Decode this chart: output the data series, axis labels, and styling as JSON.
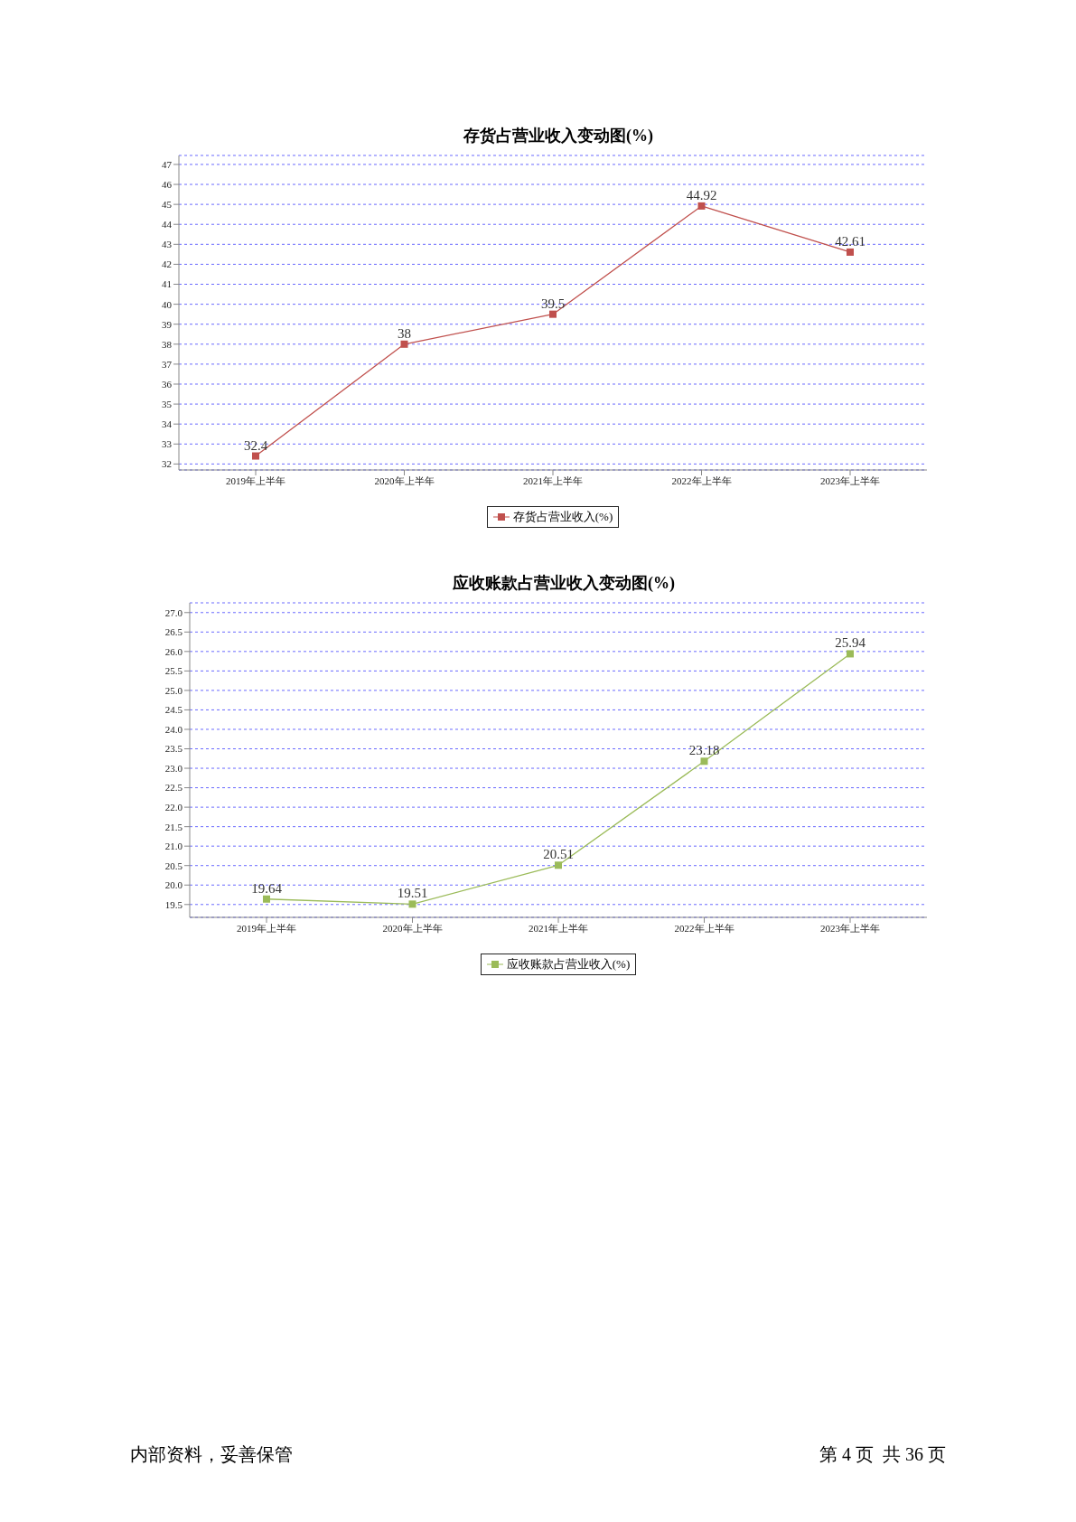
{
  "chart_data": [
    {
      "type": "line",
      "title": "存货占营业收入变动图(%)",
      "categories": [
        "2019年上半年",
        "2020年上半年",
        "2021年上半年",
        "2022年上半年",
        "2023年上半年"
      ],
      "series": [
        {
          "name": "存货占营业收入(%)",
          "color": "#c0504d",
          "values": [
            32.4,
            38,
            39.5,
            44.92,
            42.61
          ]
        }
      ],
      "ylim": [
        31.7,
        47.45
      ],
      "yticks": [
        32,
        33,
        34,
        35,
        36,
        37,
        38,
        39,
        40,
        41,
        42,
        43,
        44,
        45,
        46,
        47
      ],
      "grid": "y",
      "legend": "bottom",
      "marker": "square",
      "line_style": "solid",
      "data_labels": true
    },
    {
      "type": "line",
      "title": "应收账款占营业收入变动图(%)",
      "categories": [
        "2019年上半年",
        "2020年上半年",
        "2021年上半年",
        "2022年上半年",
        "2023年上半年"
      ],
      "series": [
        {
          "name": "应收账款占营业收入(%)",
          "color": "#9bbb59",
          "values": [
            19.64,
            19.51,
            20.51,
            23.18,
            25.94
          ]
        }
      ],
      "ylim": [
        19.17,
        27.25
      ],
      "yticks": [
        {
          "value": 19.5,
          "label": "19.5"
        },
        {
          "value": 20,
          "label": "20.0"
        },
        {
          "value": 20.5,
          "label": "20.5"
        },
        {
          "value": 21,
          "label": "21.0"
        },
        {
          "value": 21.5,
          "label": "21.5"
        },
        {
          "value": 22,
          "label": "22.0"
        },
        {
          "value": 22.5,
          "label": "22.5"
        },
        {
          "value": 23,
          "label": "23.0"
        },
        {
          "value": 23.5,
          "label": "23.5"
        },
        {
          "value": 24,
          "label": "24.0"
        },
        {
          "value": 24.5,
          "label": "24.5"
        },
        {
          "value": 25,
          "label": "25.0"
        },
        {
          "value": 25.5,
          "label": "25.5"
        },
        {
          "value": 26,
          "label": "26.0"
        },
        {
          "value": 26.5,
          "label": "26.5"
        },
        {
          "value": 27,
          "label": "27.0"
        }
      ],
      "grid": "y",
      "legend": "bottom",
      "marker": "square",
      "line_style": "solid",
      "data_labels": true,
      "annotations": [
        "内部资料，妥善保管",
        "第 4 页  共 36 页"
      ]
    }
  ]
}
